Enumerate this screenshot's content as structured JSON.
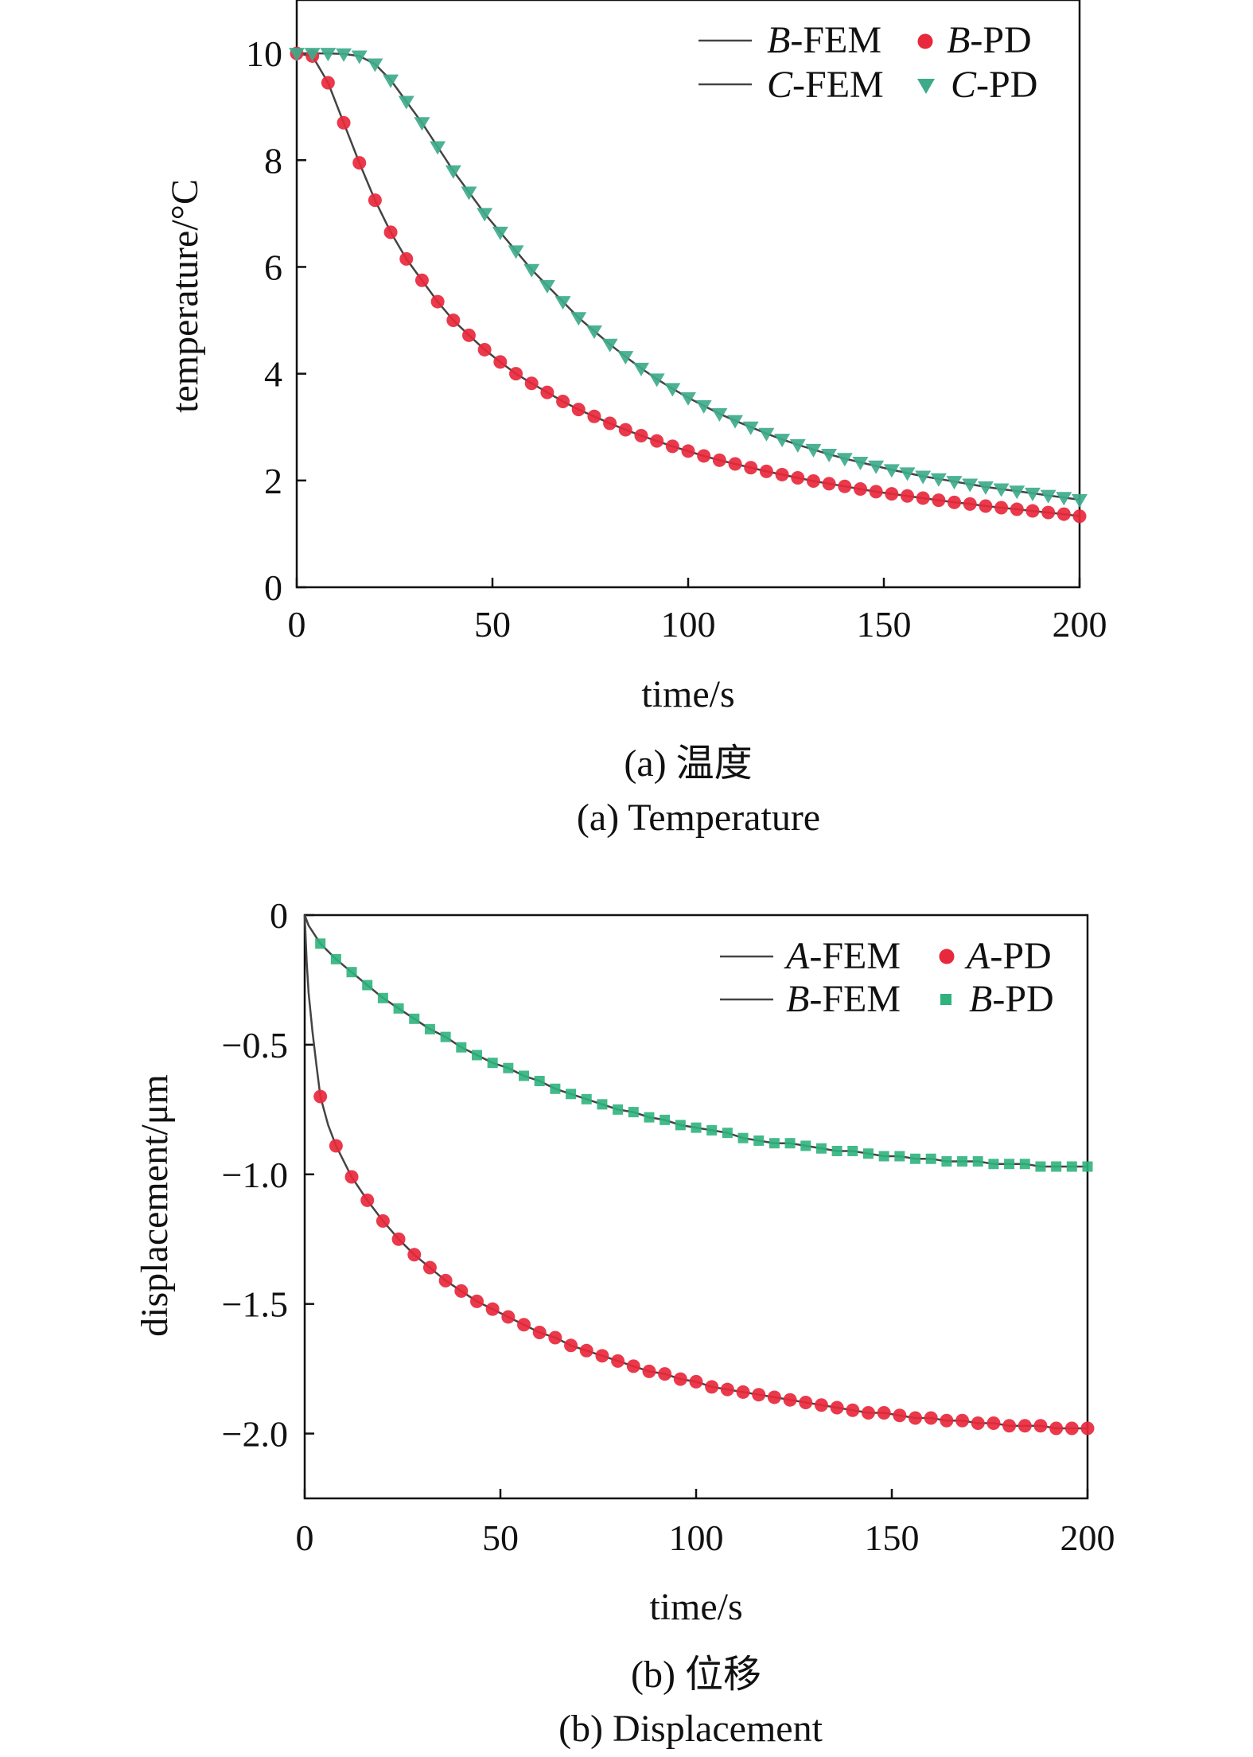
{
  "chart_data": [
    {
      "type": "line",
      "xlabel": "time/s",
      "ylabel": "temperature/°C",
      "xlim": [
        0,
        200
      ],
      "ylim": [
        0,
        11
      ],
      "xticks": [
        0,
        50,
        100,
        150,
        200
      ],
      "yticks": [
        0,
        2,
        4,
        6,
        8,
        10
      ],
      "legend_position": "top-right",
      "caption_cn": "(a) 温度",
      "caption_en": "(a) Temperature",
      "series": [
        {
          "name": "B-FEM",
          "style": "line",
          "color": "#444444",
          "x": [
            0,
            4,
            8,
            12,
            16,
            20,
            24,
            28,
            32,
            36,
            40,
            44,
            48,
            52,
            56,
            60,
            64,
            68,
            72,
            76,
            80,
            84,
            88,
            92,
            96,
            100,
            104,
            108,
            112,
            116,
            120,
            124,
            128,
            132,
            136,
            140,
            144,
            148,
            152,
            156,
            160,
            164,
            168,
            172,
            176,
            180,
            184,
            188,
            192,
            196,
            200
          ],
          "y": [
            10.0,
            9.95,
            9.45,
            8.7,
            7.95,
            7.25,
            6.65,
            6.15,
            5.75,
            5.35,
            5.0,
            4.72,
            4.45,
            4.22,
            4.0,
            3.82,
            3.65,
            3.48,
            3.33,
            3.2,
            3.07,
            2.95,
            2.84,
            2.74,
            2.64,
            2.55,
            2.46,
            2.38,
            2.31,
            2.24,
            2.17,
            2.11,
            2.05,
            1.99,
            1.94,
            1.89,
            1.84,
            1.79,
            1.75,
            1.71,
            1.67,
            1.63,
            1.59,
            1.56,
            1.52,
            1.49,
            1.46,
            1.43,
            1.4,
            1.37,
            1.33
          ]
        },
        {
          "name": "B-PD",
          "style": "circle",
          "color": "#e8283c",
          "x": [
            0,
            4,
            8,
            12,
            16,
            20,
            24,
            28,
            32,
            36,
            40,
            44,
            48,
            52,
            56,
            60,
            64,
            68,
            72,
            76,
            80,
            84,
            88,
            92,
            96,
            100,
            104,
            108,
            112,
            116,
            120,
            124,
            128,
            132,
            136,
            140,
            144,
            148,
            152,
            156,
            160,
            164,
            168,
            172,
            176,
            180,
            184,
            188,
            192,
            196,
            200
          ],
          "y": [
            10.0,
            9.95,
            9.45,
            8.7,
            7.95,
            7.25,
            6.65,
            6.15,
            5.75,
            5.35,
            5.0,
            4.72,
            4.45,
            4.22,
            4.0,
            3.82,
            3.65,
            3.48,
            3.33,
            3.2,
            3.07,
            2.95,
            2.84,
            2.74,
            2.64,
            2.55,
            2.46,
            2.38,
            2.31,
            2.24,
            2.17,
            2.11,
            2.05,
            1.99,
            1.94,
            1.89,
            1.84,
            1.79,
            1.75,
            1.71,
            1.67,
            1.63,
            1.59,
            1.56,
            1.52,
            1.49,
            1.46,
            1.43,
            1.4,
            1.37,
            1.33
          ]
        },
        {
          "name": "C-FEM",
          "style": "line",
          "color": "#444444",
          "x": [
            0,
            4,
            8,
            12,
            16,
            20,
            24,
            28,
            32,
            36,
            40,
            44,
            48,
            52,
            56,
            60,
            64,
            68,
            72,
            76,
            80,
            84,
            88,
            92,
            96,
            100,
            104,
            108,
            112,
            116,
            120,
            124,
            128,
            132,
            136,
            140,
            144,
            148,
            152,
            156,
            160,
            164,
            168,
            172,
            176,
            180,
            184,
            188,
            192,
            196,
            200
          ],
          "y": [
            10.0,
            10.0,
            10.0,
            9.99,
            9.95,
            9.8,
            9.5,
            9.1,
            8.7,
            8.25,
            7.8,
            7.4,
            7.0,
            6.65,
            6.3,
            5.95,
            5.65,
            5.35,
            5.05,
            4.8,
            4.55,
            4.32,
            4.1,
            3.9,
            3.72,
            3.55,
            3.4,
            3.25,
            3.12,
            3.0,
            2.88,
            2.77,
            2.67,
            2.58,
            2.49,
            2.41,
            2.34,
            2.27,
            2.2,
            2.14,
            2.08,
            2.03,
            1.98,
            1.93,
            1.88,
            1.84,
            1.8,
            1.76,
            1.72,
            1.68,
            1.64
          ]
        },
        {
          "name": "C-PD",
          "style": "triangle",
          "color": "#3dab8a",
          "x": [
            0,
            4,
            8,
            12,
            16,
            20,
            24,
            28,
            32,
            36,
            40,
            44,
            48,
            52,
            56,
            60,
            64,
            68,
            72,
            76,
            80,
            84,
            88,
            92,
            96,
            100,
            104,
            108,
            112,
            116,
            120,
            124,
            128,
            132,
            136,
            140,
            144,
            148,
            152,
            156,
            160,
            164,
            168,
            172,
            176,
            180,
            184,
            188,
            192,
            196,
            200
          ],
          "y": [
            10.0,
            10.0,
            10.0,
            9.99,
            9.95,
            9.8,
            9.5,
            9.1,
            8.7,
            8.25,
            7.8,
            7.4,
            7.0,
            6.65,
            6.3,
            5.95,
            5.65,
            5.35,
            5.05,
            4.8,
            4.55,
            4.32,
            4.1,
            3.9,
            3.72,
            3.55,
            3.4,
            3.25,
            3.12,
            3.0,
            2.88,
            2.77,
            2.67,
            2.58,
            2.49,
            2.41,
            2.34,
            2.27,
            2.2,
            2.14,
            2.08,
            2.03,
            1.98,
            1.93,
            1.88,
            1.84,
            1.8,
            1.76,
            1.72,
            1.68,
            1.64
          ]
        }
      ]
    },
    {
      "type": "line",
      "xlabel": "time/s",
      "ylabel": "displacement/μm",
      "xlim": [
        0,
        200
      ],
      "ylim": [
        -2.25,
        0
      ],
      "xticks": [
        0,
        50,
        100,
        150,
        200
      ],
      "yticks": [
        0,
        -0.5,
        -1.0,
        -1.5,
        -2.0
      ],
      "ytick_labels": [
        "0",
        "−0.5",
        "−1.0",
        "−1.5",
        "−2.0"
      ],
      "legend_position": "top-right",
      "caption_cn": "(b) 位移",
      "caption_en": "(b) Displacement",
      "series": [
        {
          "name": "A-FEM",
          "style": "line",
          "color": "#444444",
          "x": [
            0,
            0.5,
            1,
            2,
            3,
            4,
            6,
            8,
            12,
            16,
            20,
            24,
            28,
            32,
            36,
            40,
            44,
            48,
            52,
            56,
            60,
            64,
            68,
            72,
            76,
            80,
            84,
            88,
            92,
            96,
            100,
            104,
            108,
            112,
            116,
            120,
            124,
            128,
            132,
            136,
            140,
            144,
            148,
            152,
            156,
            160,
            164,
            168,
            172,
            176,
            180,
            184,
            188,
            192,
            196,
            200
          ],
          "y": [
            0,
            -0.18,
            -0.3,
            -0.45,
            -0.58,
            -0.7,
            -0.81,
            -0.89,
            -1.01,
            -1.1,
            -1.18,
            -1.25,
            -1.31,
            -1.36,
            -1.41,
            -1.45,
            -1.49,
            -1.52,
            -1.55,
            -1.58,
            -1.61,
            -1.63,
            -1.66,
            -1.68,
            -1.7,
            -1.72,
            -1.74,
            -1.76,
            -1.77,
            -1.79,
            -1.8,
            -1.82,
            -1.83,
            -1.84,
            -1.85,
            -1.86,
            -1.87,
            -1.88,
            -1.89,
            -1.9,
            -1.91,
            -1.92,
            -1.92,
            -1.93,
            -1.94,
            -1.94,
            -1.95,
            -1.95,
            -1.96,
            -1.96,
            -1.97,
            -1.97,
            -1.97,
            -1.98,
            -1.98,
            -1.98
          ]
        },
        {
          "name": "A-PD",
          "style": "circle",
          "color": "#e8283c",
          "x": [
            4,
            8,
            12,
            16,
            20,
            24,
            28,
            32,
            36,
            40,
            44,
            48,
            52,
            56,
            60,
            64,
            68,
            72,
            76,
            80,
            84,
            88,
            92,
            96,
            100,
            104,
            108,
            112,
            116,
            120,
            124,
            128,
            132,
            136,
            140,
            144,
            148,
            152,
            156,
            160,
            164,
            168,
            172,
            176,
            180,
            184,
            188,
            192,
            196,
            200
          ],
          "y": [
            -0.7,
            -0.89,
            -1.01,
            -1.1,
            -1.18,
            -1.25,
            -1.31,
            -1.36,
            -1.41,
            -1.45,
            -1.49,
            -1.52,
            -1.55,
            -1.58,
            -1.61,
            -1.63,
            -1.66,
            -1.68,
            -1.7,
            -1.72,
            -1.74,
            -1.76,
            -1.77,
            -1.79,
            -1.8,
            -1.82,
            -1.83,
            -1.84,
            -1.85,
            -1.86,
            -1.87,
            -1.88,
            -1.89,
            -1.9,
            -1.91,
            -1.92,
            -1.92,
            -1.93,
            -1.94,
            -1.94,
            -1.95,
            -1.95,
            -1.96,
            -1.96,
            -1.97,
            -1.97,
            -1.97,
            -1.98,
            -1.98,
            -1.98
          ]
        },
        {
          "name": "B-FEM",
          "style": "line",
          "color": "#444444",
          "x": [
            0,
            1,
            4,
            8,
            12,
            16,
            20,
            24,
            28,
            32,
            36,
            40,
            44,
            48,
            52,
            56,
            60,
            64,
            68,
            72,
            76,
            80,
            84,
            88,
            92,
            96,
            100,
            104,
            108,
            112,
            116,
            120,
            124,
            128,
            132,
            136,
            140,
            144,
            148,
            152,
            156,
            160,
            164,
            168,
            172,
            176,
            180,
            184,
            188,
            192,
            196,
            200
          ],
          "y": [
            0,
            -0.04,
            -0.11,
            -0.17,
            -0.22,
            -0.27,
            -0.32,
            -0.36,
            -0.4,
            -0.44,
            -0.47,
            -0.51,
            -0.54,
            -0.57,
            -0.59,
            -0.62,
            -0.64,
            -0.67,
            -0.69,
            -0.71,
            -0.73,
            -0.75,
            -0.76,
            -0.78,
            -0.79,
            -0.81,
            -0.82,
            -0.83,
            -0.84,
            -0.86,
            -0.87,
            -0.88,
            -0.88,
            -0.89,
            -0.9,
            -0.91,
            -0.91,
            -0.92,
            -0.93,
            -0.93,
            -0.94,
            -0.94,
            -0.95,
            -0.95,
            -0.95,
            -0.96,
            -0.96,
            -0.96,
            -0.97,
            -0.97,
            -0.97,
            -0.97
          ]
        },
        {
          "name": "B-PD",
          "style": "square",
          "color": "#2fb27c",
          "x": [
            4,
            8,
            12,
            16,
            20,
            24,
            28,
            32,
            36,
            40,
            44,
            48,
            52,
            56,
            60,
            64,
            68,
            72,
            76,
            80,
            84,
            88,
            92,
            96,
            100,
            104,
            108,
            112,
            116,
            120,
            124,
            128,
            132,
            136,
            140,
            144,
            148,
            152,
            156,
            160,
            164,
            168,
            172,
            176,
            180,
            184,
            188,
            192,
            196,
            200
          ],
          "y": [
            -0.11,
            -0.17,
            -0.22,
            -0.27,
            -0.32,
            -0.36,
            -0.4,
            -0.44,
            -0.47,
            -0.51,
            -0.54,
            -0.57,
            -0.59,
            -0.62,
            -0.64,
            -0.67,
            -0.69,
            -0.71,
            -0.73,
            -0.75,
            -0.76,
            -0.78,
            -0.79,
            -0.81,
            -0.82,
            -0.83,
            -0.84,
            -0.86,
            -0.87,
            -0.88,
            -0.88,
            -0.89,
            -0.9,
            -0.91,
            -0.91,
            -0.92,
            -0.93,
            -0.93,
            -0.94,
            -0.94,
            -0.95,
            -0.95,
            -0.95,
            -0.96,
            -0.96,
            -0.96,
            -0.97,
            -0.97,
            -0.97,
            -0.97
          ]
        }
      ]
    }
  ]
}
